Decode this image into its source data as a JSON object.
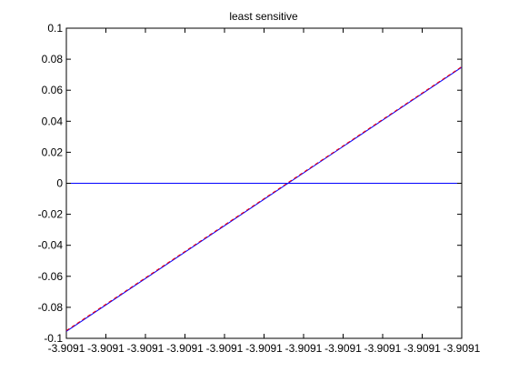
{
  "chart_data": {
    "type": "line",
    "title": "least sensitive",
    "xlabel": "",
    "ylabel": "",
    "x_tick_labels": [
      "-3.9091",
      "-3.9091",
      "-3.9091",
      "-3.9091",
      "-3.9091",
      "-3.9091",
      "-3.9091",
      "-3.9091",
      "-3.9091",
      "-3.9091",
      "-3.9091"
    ],
    "y_ticks": [
      -0.1,
      -0.08,
      -0.06,
      -0.04,
      -0.02,
      0,
      0.02,
      0.04,
      0.06,
      0.08,
      0.1
    ],
    "y_tick_labels": [
      "-0.1",
      "-0.08",
      "-0.06",
      "-0.04",
      "-0.02",
      "0",
      "0.02",
      "0.04",
      "0.06",
      "0.08",
      "0.1"
    ],
    "xlim": [
      0,
      10
    ],
    "ylim": [
      -0.1,
      0.1
    ],
    "grid": false,
    "series": [
      {
        "style": "solid",
        "color": "#0000ff",
        "x": [
          0,
          10
        ],
        "y": [
          -0.0955,
          0.0748
        ]
      },
      {
        "style": "dashed",
        "color": "#ff0000",
        "x": [
          0,
          10
        ],
        "y": [
          -0.095,
          0.0752
        ]
      },
      {
        "style": "solid",
        "color": "#0000ff",
        "x": [
          0,
          10
        ],
        "y": [
          0,
          0
        ]
      }
    ]
  }
}
